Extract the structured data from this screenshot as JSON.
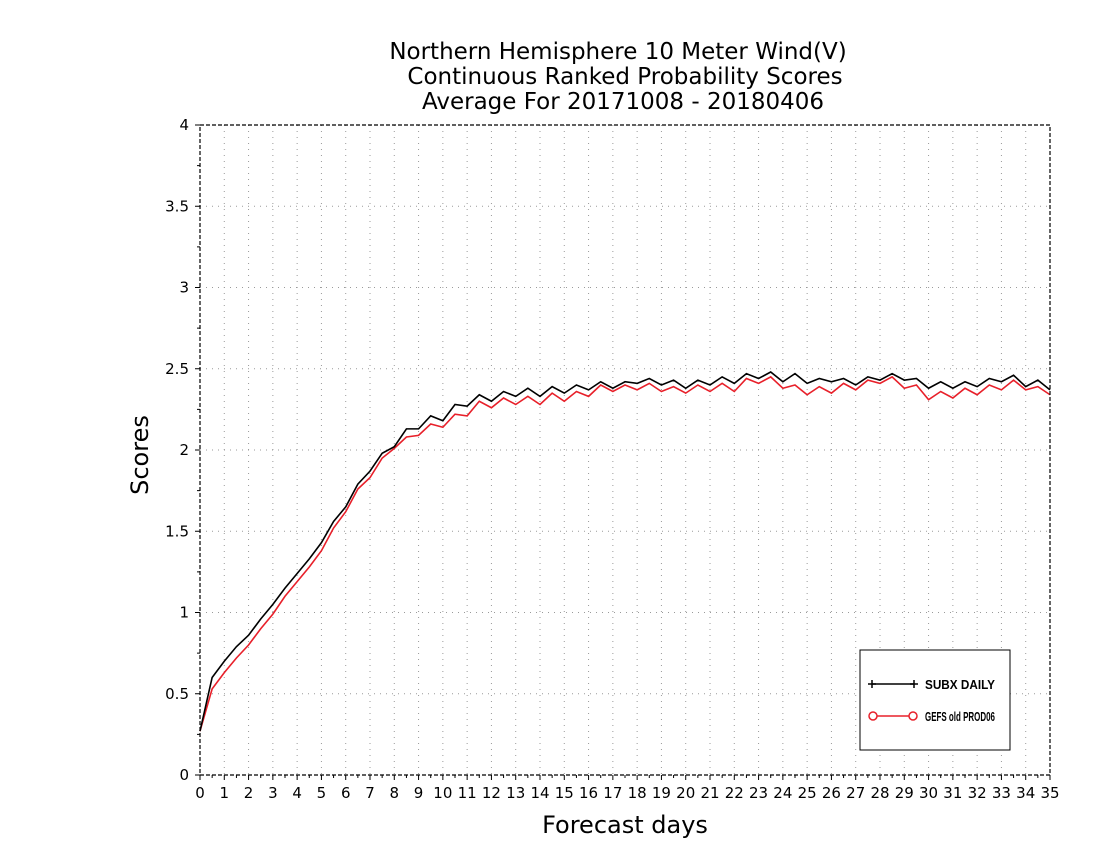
{
  "chart_data": {
    "type": "line",
    "title_lines": [
      "Northern Hemisphere 10 Meter Wind(V)",
      "Continuous Ranked Probability Scores",
      "Average For 20171008 - 20180406"
    ],
    "xlabel": "Forecast days",
    "ylabel": "Scores",
    "xlim": [
      0,
      35
    ],
    "ylim": [
      0,
      4
    ],
    "x_ticks": [
      "0",
      "1",
      "2",
      "3",
      "4",
      "5",
      "6",
      "7",
      "8",
      "9",
      "10",
      "11",
      "12",
      "13",
      "14",
      "15",
      "16",
      "17",
      "18",
      "19",
      "20",
      "21",
      "22",
      "23",
      "24",
      "25",
      "26",
      "27",
      "28",
      "29",
      "30",
      "31",
      "32",
      "33",
      "34",
      "35"
    ],
    "y_ticks": [
      "0",
      "0.5",
      "1",
      "1.5",
      "2",
      "2.5",
      "3",
      "3.5",
      "4"
    ],
    "grid": true,
    "legend_position": "bottom-right",
    "series": [
      {
        "name": "SUBX DAILY",
        "color": "#000000",
        "marker": "plus",
        "x": [
          0,
          0.5,
          1,
          1.5,
          2,
          2.5,
          3,
          3.5,
          4,
          4.5,
          5,
          5.5,
          6,
          6.5,
          7,
          7.5,
          8,
          8.5,
          9,
          9.5,
          10,
          10.5,
          11,
          11.5,
          12,
          12.5,
          13,
          13.5,
          14,
          14.5,
          15,
          15.5,
          16,
          16.5,
          17,
          17.5,
          18,
          18.5,
          19,
          19.5,
          20,
          20.5,
          21,
          21.5,
          22,
          22.5,
          23,
          23.5,
          24,
          24.5,
          25,
          25.5,
          26,
          26.5,
          27,
          27.5,
          28,
          28.5,
          29,
          29.5,
          30,
          30.5,
          31,
          31.5,
          32,
          32.5,
          33,
          33.5,
          34,
          34.5,
          35
        ],
        "values": [
          0.27,
          0.6,
          0.7,
          0.79,
          0.86,
          0.96,
          1.05,
          1.15,
          1.24,
          1.33,
          1.43,
          1.56,
          1.65,
          1.79,
          1.87,
          1.98,
          2.02,
          2.13,
          2.13,
          2.21,
          2.18,
          2.28,
          2.27,
          2.34,
          2.3,
          2.36,
          2.33,
          2.38,
          2.33,
          2.39,
          2.35,
          2.4,
          2.37,
          2.42,
          2.38,
          2.42,
          2.41,
          2.44,
          2.4,
          2.43,
          2.38,
          2.43,
          2.4,
          2.45,
          2.41,
          2.47,
          2.44,
          2.48,
          2.42,
          2.47,
          2.41,
          2.44,
          2.42,
          2.44,
          2.4,
          2.45,
          2.43,
          2.47,
          2.43,
          2.44,
          2.38,
          2.42,
          2.38,
          2.42,
          2.39,
          2.44,
          2.42,
          2.46,
          2.39,
          2.43,
          2.37
        ]
      },
      {
        "name": "GEFS old PROD06",
        "color": "#e8202a",
        "marker": "circle",
        "x": [
          0,
          0.5,
          1,
          1.5,
          2,
          2.5,
          3,
          3.5,
          4,
          4.5,
          5,
          5.5,
          6,
          6.5,
          7,
          7.5,
          8,
          8.5,
          9,
          9.5,
          10,
          10.5,
          11,
          11.5,
          12,
          12.5,
          13,
          13.5,
          14,
          14.5,
          15,
          15.5,
          16,
          16.5,
          17,
          17.5,
          18,
          18.5,
          19,
          19.5,
          20,
          20.5,
          21,
          21.5,
          22,
          22.5,
          23,
          23.5,
          24,
          24.5,
          25,
          25.5,
          26,
          26.5,
          27,
          27.5,
          28,
          28.5,
          29,
          29.5,
          30,
          30.5,
          31,
          31.5,
          32,
          32.5,
          33,
          33.5,
          34,
          34.5,
          35
        ],
        "values": [
          0.27,
          0.53,
          0.63,
          0.72,
          0.8,
          0.9,
          0.99,
          1.1,
          1.19,
          1.28,
          1.38,
          1.52,
          1.62,
          1.76,
          1.83,
          1.95,
          2.01,
          2.08,
          2.09,
          2.16,
          2.14,
          2.22,
          2.21,
          2.3,
          2.26,
          2.32,
          2.28,
          2.33,
          2.28,
          2.35,
          2.3,
          2.36,
          2.33,
          2.4,
          2.36,
          2.4,
          2.37,
          2.41,
          2.36,
          2.39,
          2.35,
          2.4,
          2.36,
          2.41,
          2.36,
          2.44,
          2.41,
          2.45,
          2.38,
          2.4,
          2.34,
          2.39,
          2.35,
          2.41,
          2.37,
          2.43,
          2.41,
          2.45,
          2.38,
          2.4,
          2.31,
          2.36,
          2.32,
          2.38,
          2.34,
          2.4,
          2.37,
          2.43,
          2.37,
          2.39,
          2.34
        ]
      }
    ]
  }
}
